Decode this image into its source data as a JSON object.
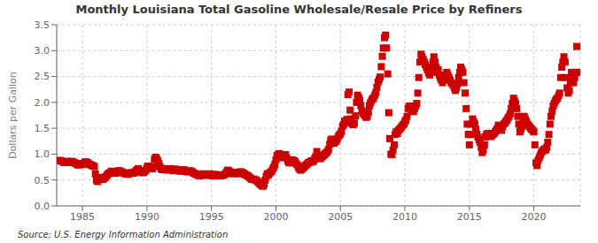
{
  "chart_data": {
    "type": "scatter",
    "title": "Monthly Louisiana Total Gasoline Wholesale/Resale Price by Refiners",
    "ylabel": "Dollars per Gallon",
    "annotations": [
      "Source: U.S. Energy Information Administration"
    ],
    "color": "#cc0000",
    "marker": "square",
    "grid": true,
    "xlim": [
      1983.0,
      2023.6
    ],
    "xticks": [
      1985,
      1990,
      1995,
      2000,
      2005,
      2010,
      2015,
      2020
    ],
    "ylim": [
      0.0,
      3.5
    ],
    "yticks": [
      {
        "value": 0.0,
        "label": "0.0"
      },
      0.5,
      {
        "value": 1.0,
        "label": "1.0"
      },
      1.5,
      {
        "value": 2.0,
        "label": "2.0"
      },
      2.5,
      {
        "value": 3.0,
        "label": "3.0"
      },
      3.5
    ],
    "x": [
      1983.25,
      1983.33,
      1983.42,
      1983.5,
      1983.58,
      1983.67,
      1983.75,
      1983.83,
      1983.92,
      1984.0,
      1984.08,
      1984.17,
      1984.25,
      1984.33,
      1984.42,
      1984.5,
      1984.58,
      1984.67,
      1984.75,
      1984.83,
      1984.92,
      1985.0,
      1985.08,
      1985.17,
      1985.25,
      1985.33,
      1985.42,
      1985.5,
      1985.58,
      1985.67,
      1985.75,
      1985.83,
      1985.92,
      1986.0,
      1986.08,
      1986.17,
      1986.25,
      1986.33,
      1986.42,
      1986.5,
      1986.58,
      1986.67,
      1986.75,
      1986.83,
      1986.92,
      1987.0,
      1987.08,
      1987.17,
      1987.25,
      1987.33,
      1987.42,
      1987.5,
      1987.58,
      1987.67,
      1987.75,
      1987.83,
      1987.92,
      1988.0,
      1988.08,
      1988.17,
      1988.25,
      1988.33,
      1988.42,
      1988.5,
      1988.58,
      1988.67,
      1988.75,
      1988.83,
      1988.92,
      1989.0,
      1989.08,
      1989.17,
      1989.25,
      1989.33,
      1989.42,
      1989.5,
      1989.58,
      1989.67,
      1989.75,
      1989.83,
      1989.92,
      1990.0,
      1990.08,
      1990.17,
      1990.25,
      1990.33,
      1990.42,
      1990.5,
      1990.58,
      1990.67,
      1990.75,
      1990.83,
      1990.92,
      1991.0,
      1991.08,
      1991.17,
      1991.25,
      1991.33,
      1991.42,
      1991.5,
      1991.58,
      1991.67,
      1991.75,
      1991.83,
      1991.92,
      1992.0,
      1992.08,
      1992.17,
      1992.25,
      1992.33,
      1992.42,
      1992.5,
      1992.58,
      1992.67,
      1992.75,
      1992.83,
      1992.92,
      1993.0,
      1993.08,
      1993.17,
      1993.25,
      1993.33,
      1993.42,
      1993.5,
      1993.58,
      1993.67,
      1993.75,
      1993.83,
      1993.92,
      1994.0,
      1994.08,
      1994.17,
      1994.25,
      1994.33,
      1994.42,
      1994.5,
      1994.58,
      1994.67,
      1994.75,
      1994.83,
      1994.92,
      1995.0,
      1995.08,
      1995.17,
      1995.25,
      1995.33,
      1995.42,
      1995.5,
      1995.58,
      1995.67,
      1995.75,
      1995.83,
      1995.92,
      1996.0,
      1996.08,
      1996.17,
      1996.25,
      1996.33,
      1996.42,
      1996.5,
      1996.58,
      1996.67,
      1996.75,
      1996.83,
      1996.92,
      1997.0,
      1997.08,
      1997.17,
      1997.25,
      1997.33,
      1997.42,
      1997.5,
      1997.58,
      1997.67,
      1997.75,
      1997.83,
      1997.92,
      1998.0,
      1998.08,
      1998.17,
      1998.25,
      1998.33,
      1998.42,
      1998.5,
      1998.58,
      1998.67,
      1998.75,
      1998.83,
      1998.92,
      1999.0,
      1999.08,
      1999.17,
      1999.25,
      1999.33,
      1999.42,
      1999.5,
      1999.58,
      1999.67,
      1999.75,
      1999.83,
      1999.92,
      2000.0,
      2000.08,
      2000.17,
      2000.25,
      2000.33,
      2000.42,
      2000.5,
      2000.58,
      2000.67,
      2000.75,
      2000.83,
      2000.92,
      2001.0,
      2001.08,
      2001.17,
      2001.25,
      2001.33,
      2001.42,
      2001.5,
      2001.58,
      2001.67,
      2001.75,
      2001.83,
      2001.92,
      2002.0,
      2002.08,
      2002.17,
      2002.25,
      2002.33,
      2002.42,
      2002.5,
      2002.58,
      2002.67,
      2002.75,
      2002.83,
      2002.92,
      2003.0,
      2003.08,
      2003.17,
      2003.25,
      2003.33,
      2003.42,
      2003.5,
      2003.58,
      2003.67,
      2003.75,
      2003.83,
      2003.92,
      2004.0,
      2004.08,
      2004.17,
      2004.25,
      2004.33,
      2004.42,
      2004.5,
      2004.58,
      2004.67,
      2004.75,
      2004.83,
      2004.92,
      2005.0,
      2005.08,
      2005.17,
      2005.25,
      2005.33,
      2005.42,
      2005.5,
      2005.58,
      2005.67,
      2005.75,
      2005.83,
      2005.92,
      2006.0,
      2006.08,
      2006.17,
      2006.25,
      2006.33,
      2006.42,
      2006.5,
      2006.58,
      2006.67,
      2006.75,
      2006.83,
      2006.92,
      2007.0,
      2007.08,
      2007.17,
      2007.25,
      2007.33,
      2007.42,
      2007.5,
      2007.58,
      2007.67,
      2007.75,
      2007.83,
      2007.92,
      2008.0,
      2008.08,
      2008.17,
      2008.25,
      2008.33,
      2008.42,
      2008.5,
      2008.58,
      2008.67,
      2008.75,
      2008.83,
      2008.92,
      2009.0,
      2009.08,
      2009.17,
      2009.25,
      2009.33,
      2009.42,
      2009.5,
      2009.58,
      2009.67,
      2009.75,
      2009.83,
      2009.92,
      2010.0,
      2010.08,
      2010.17,
      2010.25,
      2010.33,
      2010.42,
      2010.5,
      2010.58,
      2010.67,
      2010.75,
      2010.83,
      2010.92,
      2011.0,
      2011.08,
      2011.17,
      2011.25,
      2011.33,
      2011.42,
      2011.5,
      2011.58,
      2011.67,
      2011.75,
      2011.83,
      2011.92,
      2012.0,
      2012.08,
      2012.17,
      2012.25,
      2012.33,
      2012.42,
      2012.5,
      2012.58,
      2012.67,
      2012.75,
      2012.83,
      2012.92,
      2013.0,
      2013.08,
      2013.17,
      2013.25,
      2013.33,
      2013.42,
      2013.5,
      2013.58,
      2013.67,
      2013.75,
      2013.83,
      2013.92,
      2014.0,
      2014.08,
      2014.17,
      2014.25,
      2014.33,
      2014.42,
      2014.5,
      2014.58,
      2014.67,
      2014.75,
      2014.83,
      2014.92,
      2015.0,
      2015.08,
      2015.17,
      2015.25,
      2015.33,
      2015.42,
      2015.5,
      2015.58,
      2015.67,
      2015.75,
      2015.83,
      2015.92,
      2016.0,
      2016.08,
      2016.17,
      2016.25,
      2016.33,
      2016.42,
      2016.5,
      2016.58,
      2016.67,
      2016.75,
      2016.83,
      2016.92,
      2017.0,
      2017.08,
      2017.17,
      2017.25,
      2017.33,
      2017.42,
      2017.5,
      2017.58,
      2017.67,
      2017.75,
      2017.83,
      2017.92,
      2018.0,
      2018.08,
      2018.17,
      2018.25,
      2018.33,
      2018.42,
      2018.5,
      2018.58,
      2018.67,
      2018.75,
      2018.83,
      2018.92,
      2019.0,
      2019.08,
      2019.17,
      2019.25,
      2019.33,
      2019.42,
      2019.5,
      2019.58,
      2019.67,
      2019.75,
      2019.83,
      2019.92,
      2020.0,
      2020.08,
      2020.17,
      2020.25,
      2020.33,
      2020.42,
      2020.5,
      2020.58,
      2020.67,
      2020.75,
      2020.83,
      2020.92,
      2021.0,
      2021.08,
      2021.17,
      2021.25,
      2021.33,
      2021.42,
      2021.5,
      2021.58,
      2021.67,
      2021.75,
      2021.83,
      2021.92,
      2022.0,
      2022.08,
      2022.17,
      2022.25,
      2022.33,
      2022.42,
      2022.5,
      2022.58,
      2022.67,
      2022.75,
      2022.83,
      2022.92,
      2023.0,
      2023.08,
      2023.17,
      2023.25,
      2023.33,
      2023.42
    ],
    "values": [
      0.88,
      0.87,
      0.86,
      0.85,
      0.84,
      0.84,
      0.85,
      0.86,
      0.85,
      0.84,
      0.85,
      0.86,
      0.85,
      0.84,
      0.83,
      0.82,
      0.8,
      0.79,
      0.8,
      0.81,
      0.8,
      0.8,
      0.82,
      0.84,
      0.85,
      0.84,
      0.83,
      0.81,
      0.8,
      0.79,
      0.78,
      0.77,
      0.76,
      0.62,
      0.5,
      0.47,
      0.52,
      0.55,
      0.54,
      0.53,
      0.51,
      0.53,
      0.55,
      0.57,
      0.6,
      0.62,
      0.63,
      0.65,
      0.67,
      0.66,
      0.65,
      0.64,
      0.63,
      0.65,
      0.67,
      0.68,
      0.67,
      0.66,
      0.65,
      0.64,
      0.63,
      0.62,
      0.62,
      0.61,
      0.62,
      0.63,
      0.64,
      0.64,
      0.63,
      0.64,
      0.66,
      0.68,
      0.7,
      0.72,
      0.68,
      0.66,
      0.65,
      0.64,
      0.65,
      0.67,
      0.69,
      0.74,
      0.77,
      0.76,
      0.74,
      0.72,
      0.72,
      0.76,
      0.9,
      0.94,
      0.91,
      0.87,
      0.82,
      0.76,
      0.72,
      0.7,
      0.72,
      0.72,
      0.71,
      0.7,
      0.69,
      0.7,
      0.71,
      0.72,
      0.71,
      0.69,
      0.68,
      0.69,
      0.71,
      0.7,
      0.69,
      0.68,
      0.67,
      0.68,
      0.69,
      0.7,
      0.69,
      0.67,
      0.66,
      0.66,
      0.67,
      0.68,
      0.67,
      0.66,
      0.64,
      0.63,
      0.62,
      0.61,
      0.6,
      0.59,
      0.58,
      0.59,
      0.61,
      0.62,
      0.61,
      0.6,
      0.59,
      0.6,
      0.61,
      0.62,
      0.61,
      0.59,
      0.58,
      0.59,
      0.61,
      0.6,
      0.59,
      0.58,
      0.58,
      0.58,
      0.59,
      0.6,
      0.59,
      0.6,
      0.62,
      0.65,
      0.69,
      0.68,
      0.66,
      0.64,
      0.63,
      0.62,
      0.64,
      0.65,
      0.64,
      0.63,
      0.62,
      0.64,
      0.66,
      0.65,
      0.64,
      0.63,
      0.61,
      0.6,
      0.59,
      0.58,
      0.56,
      0.54,
      0.52,
      0.51,
      0.52,
      0.51,
      0.5,
      0.49,
      0.47,
      0.45,
      0.43,
      0.41,
      0.39,
      0.38,
      0.42,
      0.5,
      0.57,
      0.62,
      0.6,
      0.63,
      0.65,
      0.67,
      0.71,
      0.75,
      0.8,
      0.89,
      0.97,
      0.99,
      1.01,
      0.99,
      0.95,
      0.93,
      0.95,
      0.97,
      0.99,
      0.93,
      0.87,
      0.84,
      0.83,
      0.85,
      0.89,
      0.88,
      0.87,
      0.85,
      0.81,
      0.79,
      0.74,
      0.71,
      0.69,
      0.71,
      0.73,
      0.75,
      0.77,
      0.79,
      0.81,
      0.83,
      0.84,
      0.85,
      0.87,
      0.85,
      0.87,
      0.91,
      0.95,
      1.05,
      0.97,
      0.95,
      0.91,
      0.93,
      0.95,
      0.97,
      0.99,
      1.01,
      1.03,
      1.05,
      1.09,
      1.19,
      1.27,
      1.29,
      1.24,
      1.21,
      1.24,
      1.25,
      1.29,
      1.34,
      1.37,
      1.39,
      1.44,
      1.54,
      1.57,
      1.64,
      1.61,
      1.67,
      2.15,
      2.2,
      1.85,
      1.68,
      1.58,
      1.57,
      1.6,
      1.74,
      2.0,
      2.14,
      2.09,
      2.04,
      1.94,
      1.84,
      1.79,
      1.77,
      1.74,
      1.71,
      1.73,
      1.81,
      1.94,
      1.99,
      2.04,
      2.07,
      2.09,
      2.14,
      2.19,
      2.29,
      2.39,
      2.44,
      2.49,
      2.69,
      2.89,
      3.05,
      3.25,
      3.3,
      3.05,
      2.55,
      1.8,
      1.3,
      1.0,
      0.99,
      1.08,
      1.18,
      1.38,
      1.43,
      1.4,
      1.46,
      1.48,
      1.5,
      1.53,
      1.56,
      1.58,
      1.63,
      1.66,
      1.73,
      1.88,
      1.93,
      1.9,
      1.86,
      1.83,
      1.82,
      1.88,
      1.93,
      1.98,
      2.18,
      2.48,
      2.78,
      2.93,
      2.88,
      2.83,
      2.78,
      2.73,
      2.68,
      2.63,
      2.58,
      2.53,
      2.58,
      2.68,
      2.78,
      2.88,
      2.78,
      2.68,
      2.58,
      2.63,
      2.53,
      2.48,
      2.43,
      2.38,
      2.43,
      2.48,
      2.53,
      2.58,
      2.53,
      2.48,
      2.43,
      2.38,
      2.36,
      2.33,
      2.28,
      2.23,
      2.28,
      2.36,
      2.48,
      2.58,
      2.68,
      2.63,
      2.58,
      2.38,
      2.18,
      1.88,
      1.58,
      1.38,
      1.18,
      1.38,
      1.58,
      1.68,
      1.63,
      1.58,
      1.48,
      1.38,
      1.33,
      1.28,
      1.23,
      1.13,
      1.03,
      1.08,
      1.18,
      1.33,
      1.38,
      1.4,
      1.38,
      1.36,
      1.34,
      1.36,
      1.38,
      1.4,
      1.43,
      1.46,
      1.5,
      1.56,
      1.53,
      1.5,
      1.46,
      1.53,
      1.58,
      1.6,
      1.63,
      1.66,
      1.7,
      1.73,
      1.78,
      1.88,
      1.98,
      2.08,
      2.03,
      1.98,
      1.88,
      1.73,
      1.58,
      1.43,
      1.48,
      1.53,
      1.63,
      1.73,
      1.68,
      1.63,
      1.58,
      1.56,
      1.53,
      1.5,
      1.48,
      1.46,
      1.43,
      1.18,
      0.83,
      0.78,
      0.88,
      0.93,
      0.98,
      1.03,
      1.06,
      1.08,
      1.1,
      1.08,
      1.13,
      1.23,
      1.38,
      1.58,
      1.73,
      1.83,
      1.93,
      1.98,
      2.03,
      2.06,
      2.08,
      2.13,
      2.18,
      2.48,
      2.68,
      2.78,
      2.88,
      2.78,
      2.48,
      2.28,
      2.18,
      2.23,
      2.38,
      2.58,
      2.48,
      2.38,
      2.48,
      2.58,
      3.08,
      2.58
    ]
  }
}
